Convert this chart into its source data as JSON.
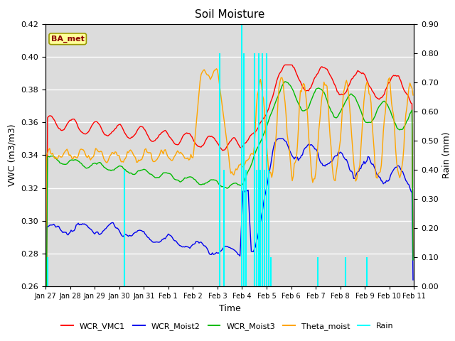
{
  "title": "Soil Moisture",
  "xlabel": "Time",
  "ylabel_left": "VWC (m3/m3)",
  "ylabel_right": "Rain (mm)",
  "ylim_left": [
    0.26,
    0.42
  ],
  "ylim_right": [
    0.0,
    0.9
  ],
  "annotation_text": "BA_met",
  "annotation_color": "#8B0000",
  "annotation_bg": "#FFFF99",
  "annotation_edge": "#999900",
  "bg_color": "#DCDCDC",
  "line_colors": {
    "WCR_VMC1": "#FF0000",
    "WCR_Moist2": "#0000EE",
    "WCR_Moist3": "#00BB00",
    "Theta_moist": "#FFA500",
    "Rain": "#00FFFF"
  },
  "legend_labels": [
    "WCR_VMC1",
    "WCR_Moist2",
    "WCR_Moist3",
    "Theta_moist",
    "Rain"
  ],
  "tick_labels": [
    "Jan 27",
    "Jan 28",
    "Jan 29",
    "Jan 30",
    "Jan 31",
    "Feb 1",
    "Feb 2",
    "Feb 3",
    "Feb 4",
    "Feb 5",
    "Feb 6",
    "Feb 7",
    "Feb 8",
    "Feb 9",
    "Feb 10",
    "Feb 11"
  ]
}
